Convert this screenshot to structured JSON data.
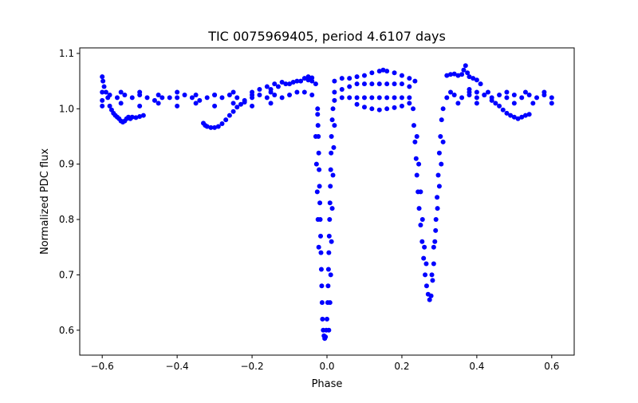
{
  "chart_data": {
    "type": "scatter",
    "title": "TIC 0075969405, period 4.6107 days",
    "xlabel": "Phase",
    "ylabel": "Normalized PDC flux",
    "xlim": [
      -0.66,
      0.66
    ],
    "ylim": [
      0.555,
      1.11
    ],
    "xticks": [
      -0.6,
      -0.4,
      -0.2,
      0.0,
      0.2,
      0.4,
      0.6
    ],
    "xtick_labels": [
      "−0.6",
      "−0.4",
      "−0.2",
      "0.0",
      "0.2",
      "0.4",
      "0.6"
    ],
    "yticks": [
      0.6,
      0.7,
      0.8,
      0.9,
      1.0,
      1.1
    ],
    "ytick_labels": [
      "0.6",
      "0.7",
      "0.8",
      "0.9",
      "1.0",
      "1.1"
    ],
    "grid": false,
    "series": [
      {
        "color": "#0000ff",
        "marker": "circle",
        "points": [
          [
            -0.6,
            1.015
          ],
          [
            -0.58,
            1.025
          ],
          [
            -0.56,
            1.02
          ],
          [
            -0.54,
            1.025
          ],
          [
            -0.52,
            1.02
          ],
          [
            -0.5,
            1.025
          ],
          [
            -0.48,
            1.02
          ],
          [
            -0.46,
            1.015
          ],
          [
            -0.44,
            1.02
          ],
          [
            -0.42,
            1.02
          ],
          [
            -0.4,
            1.02
          ],
          [
            -0.38,
            1.025
          ],
          [
            -0.36,
            1.02
          ],
          [
            -0.34,
            1.015
          ],
          [
            -0.32,
            1.02
          ],
          [
            -0.3,
            1.025
          ],
          [
            -0.28,
            1.02
          ],
          [
            -0.26,
            1.025
          ],
          [
            -0.24,
            1.02
          ],
          [
            -0.22,
            1.015
          ],
          [
            -0.2,
            1.02
          ],
          [
            -0.18,
            1.025
          ],
          [
            -0.16,
            1.02
          ],
          [
            -0.14,
            1.025
          ],
          [
            -0.12,
            1.02
          ],
          [
            -0.1,
            1.025
          ],
          [
            -0.08,
            1.03
          ],
          [
            -0.06,
            1.03
          ],
          [
            -0.04,
            1.025
          ],
          [
            -0.6,
            1.03
          ],
          [
            -0.55,
            1.03
          ],
          [
            -0.5,
            1.03
          ],
          [
            -0.45,
            1.025
          ],
          [
            -0.4,
            1.03
          ],
          [
            -0.35,
            1.025
          ],
          [
            -0.3,
            1.025
          ],
          [
            -0.25,
            1.03
          ],
          [
            -0.2,
            1.025
          ],
          [
            -0.15,
            1.03
          ],
          [
            -0.6,
            1.005
          ],
          [
            -0.55,
            1.01
          ],
          [
            -0.5,
            1.005
          ],
          [
            -0.45,
            1.01
          ],
          [
            -0.4,
            1.005
          ],
          [
            -0.35,
            1.01
          ],
          [
            -0.3,
            1.005
          ],
          [
            -0.25,
            1.01
          ],
          [
            -0.2,
            1.005
          ],
          [
            -0.15,
            1.01
          ],
          [
            -0.6,
            1.058
          ],
          [
            -0.598,
            1.05
          ],
          [
            -0.595,
            1.04
          ],
          [
            -0.59,
            1.03
          ],
          [
            -0.585,
            1.02
          ],
          [
            -0.58,
            1.005
          ],
          [
            -0.575,
            0.998
          ],
          [
            -0.57,
            0.992
          ],
          [
            -0.565,
            0.988
          ],
          [
            -0.56,
            0.985
          ],
          [
            -0.555,
            0.982
          ],
          [
            -0.55,
            0.978
          ],
          [
            -0.545,
            0.976
          ],
          [
            -0.54,
            0.978
          ],
          [
            -0.535,
            0.982
          ],
          [
            -0.53,
            0.985
          ],
          [
            -0.525,
            0.982
          ],
          [
            -0.52,
            0.985
          ],
          [
            -0.51,
            0.984
          ],
          [
            -0.5,
            0.986
          ],
          [
            -0.49,
            0.988
          ],
          [
            -0.33,
            0.974
          ],
          [
            -0.325,
            0.97
          ],
          [
            -0.32,
            0.968
          ],
          [
            -0.31,
            0.966
          ],
          [
            -0.3,
            0.966
          ],
          [
            -0.29,
            0.968
          ],
          [
            -0.28,
            0.973
          ],
          [
            -0.27,
            0.98
          ],
          [
            -0.26,
            0.988
          ],
          [
            -0.25,
            0.995
          ],
          [
            -0.24,
            1.003
          ],
          [
            -0.23,
            1.008
          ],
          [
            -0.22,
            1.012
          ],
          [
            -0.15,
            1.035
          ],
          [
            -0.13,
            1.04
          ],
          [
            -0.11,
            1.045
          ],
          [
            -0.09,
            1.048
          ],
          [
            -0.07,
            1.05
          ],
          [
            -0.05,
            1.052
          ],
          [
            -0.04,
            1.05
          ],
          [
            -0.03,
            1.045
          ],
          [
            -0.025,
            1.0
          ],
          [
            -0.1,
            1.045
          ],
          [
            -0.08,
            1.05
          ],
          [
            -0.06,
            1.055
          ],
          [
            -0.05,
            1.058
          ],
          [
            -0.04,
            1.056
          ],
          [
            -0.2,
            1.03
          ],
          [
            -0.18,
            1.035
          ],
          [
            -0.16,
            1.04
          ],
          [
            -0.14,
            1.045
          ],
          [
            -0.12,
            1.048
          ],
          [
            -0.025,
            0.99
          ],
          [
            -0.024,
            0.97
          ],
          [
            -0.023,
            0.95
          ],
          [
            -0.022,
            0.92
          ],
          [
            -0.021,
            0.89
          ],
          [
            -0.02,
            0.86
          ],
          [
            -0.019,
            0.83
          ],
          [
            -0.018,
            0.8
          ],
          [
            -0.017,
            0.77
          ],
          [
            -0.016,
            0.74
          ],
          [
            -0.015,
            0.71
          ],
          [
            -0.014,
            0.68
          ],
          [
            -0.013,
            0.65
          ],
          [
            -0.012,
            0.62
          ],
          [
            -0.01,
            0.6
          ],
          [
            -0.008,
            0.59
          ],
          [
            -0.006,
            0.585
          ],
          [
            -0.004,
            0.588
          ],
          [
            -0.002,
            0.6
          ],
          [
            0.0,
            0.62
          ],
          [
            0.002,
            0.65
          ],
          [
            0.003,
            0.68
          ],
          [
            0.004,
            0.71
          ],
          [
            0.005,
            0.74
          ],
          [
            0.006,
            0.77
          ],
          [
            0.007,
            0.8
          ],
          [
            0.008,
            0.83
          ],
          [
            0.009,
            0.86
          ],
          [
            0.01,
            0.89
          ],
          [
            0.011,
            0.92
          ],
          [
            0.012,
            0.95
          ],
          [
            0.014,
            0.98
          ],
          [
            0.016,
            1.0
          ],
          [
            -0.03,
            0.95
          ],
          [
            -0.028,
            0.9
          ],
          [
            -0.026,
            0.85
          ],
          [
            -0.024,
            0.8
          ],
          [
            -0.022,
            0.75
          ],
          [
            0.005,
            0.6
          ],
          [
            0.008,
            0.65
          ],
          [
            0.01,
            0.7
          ],
          [
            0.012,
            0.76
          ],
          [
            0.014,
            0.82
          ],
          [
            0.016,
            0.88
          ],
          [
            0.018,
            0.93
          ],
          [
            0.02,
            0.97
          ],
          [
            0.02,
            1.05
          ],
          [
            0.04,
            1.055
          ],
          [
            0.06,
            1.055
          ],
          [
            0.08,
            1.058
          ],
          [
            0.1,
            1.06
          ],
          [
            0.12,
            1.065
          ],
          [
            0.14,
            1.068
          ],
          [
            0.15,
            1.07
          ],
          [
            0.16,
            1.068
          ],
          [
            0.18,
            1.065
          ],
          [
            0.2,
            1.06
          ],
          [
            0.22,
            1.055
          ],
          [
            0.235,
            1.05
          ],
          [
            0.02,
            1.03
          ],
          [
            0.04,
            1.035
          ],
          [
            0.06,
            1.04
          ],
          [
            0.08,
            1.045
          ],
          [
            0.1,
            1.045
          ],
          [
            0.12,
            1.045
          ],
          [
            0.14,
            1.045
          ],
          [
            0.16,
            1.045
          ],
          [
            0.18,
            1.045
          ],
          [
            0.2,
            1.045
          ],
          [
            0.22,
            1.04
          ],
          [
            0.02,
            1.015
          ],
          [
            0.04,
            1.02
          ],
          [
            0.06,
            1.02
          ],
          [
            0.08,
            1.02
          ],
          [
            0.1,
            1.02
          ],
          [
            0.12,
            1.02
          ],
          [
            0.14,
            1.02
          ],
          [
            0.16,
            1.02
          ],
          [
            0.18,
            1.02
          ],
          [
            0.2,
            1.02
          ],
          [
            0.22,
            1.02
          ],
          [
            0.08,
            1.008
          ],
          [
            0.1,
            1.003
          ],
          [
            0.12,
            1.0
          ],
          [
            0.14,
            0.998
          ],
          [
            0.16,
            1.0
          ],
          [
            0.18,
            1.002
          ],
          [
            0.2,
            1.005
          ],
          [
            0.22,
            1.01
          ],
          [
            0.23,
            1.0
          ],
          [
            0.232,
            0.97
          ],
          [
            0.235,
            0.94
          ],
          [
            0.238,
            0.91
          ],
          [
            0.24,
            0.88
          ],
          [
            0.243,
            0.85
          ],
          [
            0.246,
            0.82
          ],
          [
            0.25,
            0.79
          ],
          [
            0.254,
            0.76
          ],
          [
            0.258,
            0.73
          ],
          [
            0.262,
            0.7
          ],
          [
            0.266,
            0.68
          ],
          [
            0.27,
            0.665
          ],
          [
            0.274,
            0.655
          ],
          [
            0.278,
            0.662
          ],
          [
            0.282,
            0.69
          ],
          [
            0.285,
            0.72
          ],
          [
            0.288,
            0.76
          ],
          [
            0.291,
            0.8
          ],
          [
            0.294,
            0.84
          ],
          [
            0.297,
            0.88
          ],
          [
            0.3,
            0.92
          ],
          [
            0.303,
            0.95
          ],
          [
            0.306,
            0.98
          ],
          [
            0.31,
            1.0
          ],
          [
            0.24,
            0.95
          ],
          [
            0.245,
            0.9
          ],
          [
            0.25,
            0.85
          ],
          [
            0.255,
            0.8
          ],
          [
            0.26,
            0.75
          ],
          [
            0.265,
            0.72
          ],
          [
            0.28,
            0.7
          ],
          [
            0.285,
            0.75
          ],
          [
            0.29,
            0.78
          ],
          [
            0.295,
            0.82
          ],
          [
            0.3,
            0.86
          ],
          [
            0.305,
            0.9
          ],
          [
            0.31,
            0.94
          ],
          [
            0.32,
            1.02
          ],
          [
            0.34,
            1.025
          ],
          [
            0.36,
            1.02
          ],
          [
            0.38,
            1.025
          ],
          [
            0.4,
            1.02
          ],
          [
            0.42,
            1.025
          ],
          [
            0.44,
            1.02
          ],
          [
            0.46,
            1.025
          ],
          [
            0.48,
            1.02
          ],
          [
            0.5,
            1.025
          ],
          [
            0.52,
            1.02
          ],
          [
            0.54,
            1.025
          ],
          [
            0.56,
            1.02
          ],
          [
            0.58,
            1.025
          ],
          [
            0.6,
            1.02
          ],
          [
            0.33,
            1.03
          ],
          [
            0.38,
            1.03
          ],
          [
            0.43,
            1.03
          ],
          [
            0.48,
            1.03
          ],
          [
            0.53,
            1.03
          ],
          [
            0.58,
            1.03
          ],
          [
            0.35,
            1.01
          ],
          [
            0.4,
            1.01
          ],
          [
            0.45,
            1.01
          ],
          [
            0.5,
            1.01
          ],
          [
            0.55,
            1.01
          ],
          [
            0.6,
            1.01
          ],
          [
            0.32,
            1.06
          ],
          [
            0.33,
            1.062
          ],
          [
            0.34,
            1.063
          ],
          [
            0.35,
            1.06
          ],
          [
            0.36,
            1.062
          ],
          [
            0.365,
            1.07
          ],
          [
            0.37,
            1.078
          ],
          [
            0.375,
            1.065
          ],
          [
            0.38,
            1.058
          ],
          [
            0.39,
            1.055
          ],
          [
            0.4,
            1.052
          ],
          [
            0.41,
            1.045
          ],
          [
            0.38,
            1.035
          ],
          [
            0.4,
            1.03
          ],
          [
            0.42,
            1.025
          ],
          [
            0.44,
            1.015
          ],
          [
            0.46,
            1.005
          ],
          [
            0.47,
            0.998
          ],
          [
            0.48,
            0.992
          ],
          [
            0.49,
            0.988
          ],
          [
            0.5,
            0.985
          ],
          [
            0.51,
            0.982
          ],
          [
            0.52,
            0.985
          ],
          [
            0.53,
            0.988
          ],
          [
            0.54,
            0.99
          ]
        ]
      }
    ]
  }
}
